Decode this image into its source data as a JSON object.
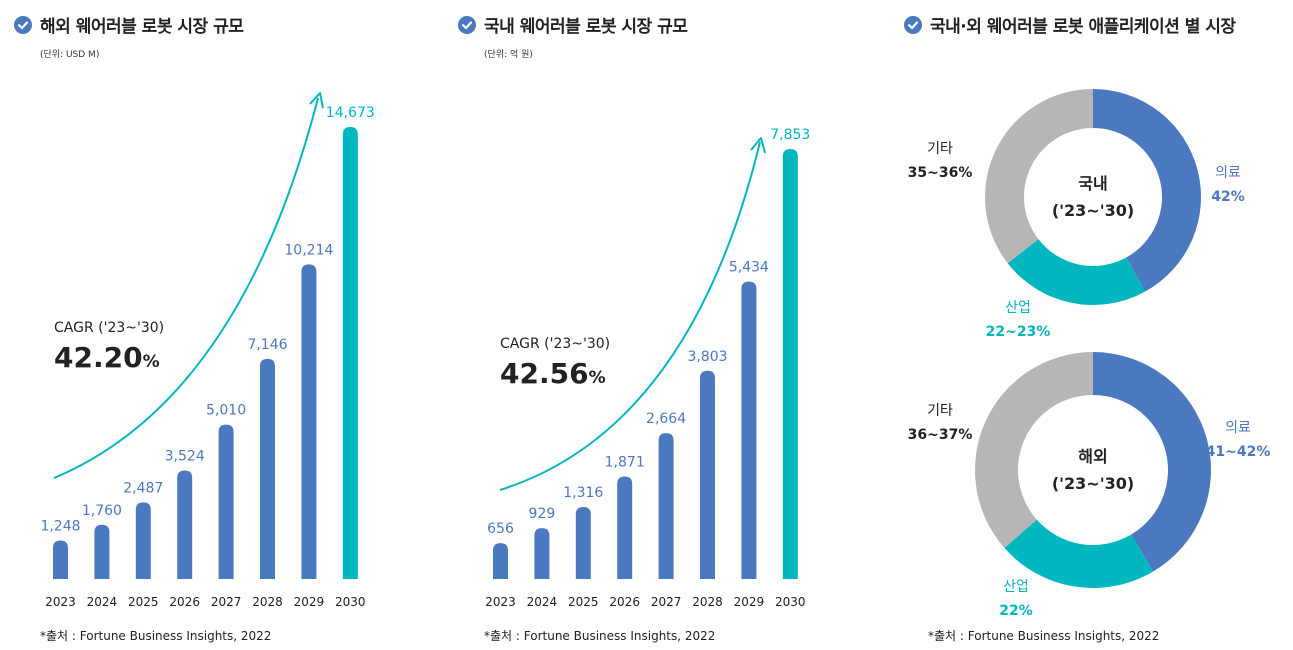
{
  "colors": {
    "bar": "#4a79c0",
    "highlight": "#00b7c0",
    "other": "#b8b5b6",
    "text_dark": "#222222"
  },
  "panels": {
    "overseas_size": {
      "title": "해외 웨어러블 로봇 시장 규모",
      "unit": "(단위: USD M)",
      "cagr_label": "CAGR ('23~'30)",
      "cagr_number": "42.20",
      "cagr_suffix": "%",
      "source": "*출처 : Fortune Business Insights, 2022"
    },
    "domestic_size": {
      "title": "국내 웨어러블 로봇 시장 규모",
      "unit": "(단위: 억 원)",
      "cagr_label": "CAGR ('23~'30)",
      "cagr_number": "42.56",
      "cagr_suffix": "%",
      "source": "*출처 : Fortune Business Insights, 2022"
    },
    "applications": {
      "title": "국내·외 웨어러블 로봇 애플리케이션 별 시장",
      "source": "*출처 : Fortune Business Insights, 2022"
    }
  },
  "chart_data": [
    {
      "type": "bar",
      "title": "해외 웨어러블 로봇 시장 규모",
      "unit": "USD M",
      "categories": [
        "2023",
        "2024",
        "2025",
        "2026",
        "2027",
        "2028",
        "2029",
        "2030"
      ],
      "values": [
        1248,
        1760,
        2487,
        3524,
        5010,
        7146,
        10214,
        14673
      ],
      "value_labels": [
        "1,248",
        "1,760",
        "2,487",
        "3,524",
        "5,010",
        "7,146",
        "10,214",
        "14,673"
      ],
      "highlight_category": "2030",
      "ylim": [
        0,
        14673
      ],
      "cagr": "42.20%"
    },
    {
      "type": "bar",
      "title": "국내 웨어러블 로봇 시장 규모",
      "unit": "억 원",
      "categories": [
        "2023",
        "2024",
        "2025",
        "2026",
        "2027",
        "2028",
        "2029",
        "2030"
      ],
      "values": [
        656,
        929,
        1316,
        1871,
        2664,
        3803,
        5434,
        7853
      ],
      "value_labels": [
        "656",
        "929",
        "1,316",
        "1,871",
        "2,664",
        "3,803",
        "5,434",
        "7,853"
      ],
      "highlight_category": "2030",
      "ylim": [
        0,
        7853
      ],
      "cagr": "42.56%"
    },
    {
      "type": "pie",
      "donut": true,
      "center_title": "국내",
      "center_sub": "('23~'30)",
      "slices": [
        {
          "label": "의료",
          "value_label": "42%",
          "value": 42
        },
        {
          "label": "산업",
          "value_label": "22~23%",
          "value": 22.5
        },
        {
          "label": "기타",
          "value_label": "35~36%",
          "value": 35.5
        }
      ]
    },
    {
      "type": "pie",
      "donut": true,
      "center_title": "해외",
      "center_sub": "('23~'30)",
      "slices": [
        {
          "label": "의료",
          "value_label": "41~42%",
          "value": 41.5
        },
        {
          "label": "산업",
          "value_label": "22%",
          "value": 22
        },
        {
          "label": "기타",
          "value_label": "36~37%",
          "value": 36.5
        }
      ]
    }
  ]
}
